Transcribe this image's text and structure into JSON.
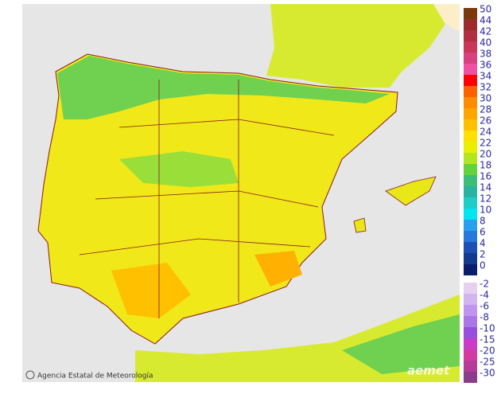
{
  "legend": {
    "positive": {
      "labels": [
        50,
        44,
        42,
        40,
        38,
        36,
        34,
        32,
        30,
        28,
        26,
        24,
        22,
        20,
        18,
        16,
        14,
        12,
        10,
        8,
        6,
        4,
        2,
        0
      ],
      "colors": [
        "#7a3a0e",
        "#9b2b2b",
        "#b03040",
        "#c8365a",
        "#d84080",
        "#f050a0",
        "#ff0000",
        "#ff6000",
        "#ff8c00",
        "#ffa500",
        "#ffc000",
        "#ffe000",
        "#e8f000",
        "#b4e61e",
        "#64d23c",
        "#3cbe78",
        "#28b4a0",
        "#1ecdc8",
        "#00e6f0",
        "#28a0f0",
        "#2878dc",
        "#1e50b4",
        "#143c8c",
        "#0a1e6e"
      ]
    },
    "negative": {
      "labels": [
        -2,
        -4,
        -6,
        -8,
        -10,
        -15,
        -20,
        -25,
        -30
      ],
      "colors": [
        "#e6d2f0",
        "#d2b4f0",
        "#be96f0",
        "#aa78e6",
        "#9650dc",
        "#c83cc8",
        "#d23ca0",
        "#b43c96",
        "#8c3c8c"
      ]
    }
  },
  "footer": {
    "credit": "Agencia Estatal de Meteorología",
    "logo": "aemet"
  }
}
